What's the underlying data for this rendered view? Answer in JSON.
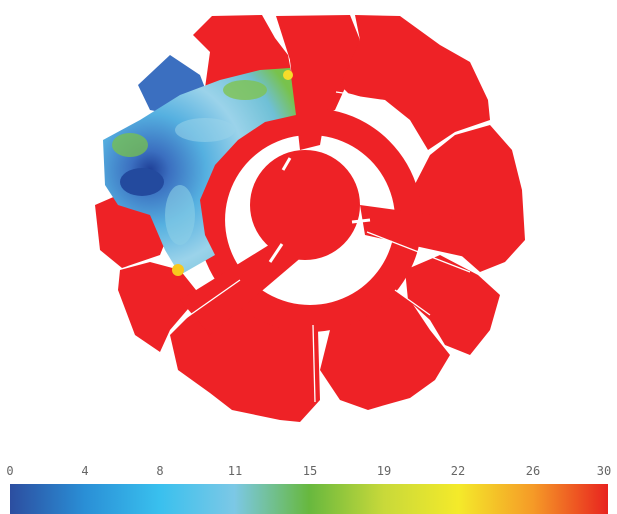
{
  "colorbar": {
    "ticks": [
      "0",
      "4",
      "8",
      "11",
      "15",
      "19",
      "22",
      "26",
      "30"
    ],
    "range": [
      0,
      30
    ],
    "colors": [
      "#2c4ea0",
      "#2a8fd6",
      "#39c0ee",
      "#7cc8e6",
      "#67b83e",
      "#c8d93a",
      "#f4ea2a",
      "#f59a27",
      "#e8231f"
    ]
  },
  "field": {
    "background_value": 30,
    "background_color": "#ee2226",
    "highlighted_sector_colors": [
      "#3b6fc0",
      "#55b0e0",
      "#9bd3ea",
      "#78c24c"
    ]
  }
}
